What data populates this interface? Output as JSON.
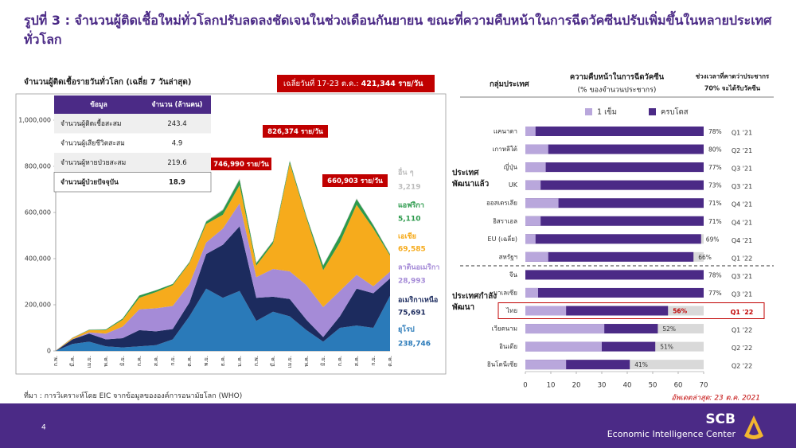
{
  "title": "รูปที่ 3 : จำนวนผู้ติดเชื้อใหม่ทั่วโลกปรับลดลงชัดเจนในช่วงเดือนกันยายน ขณะที่ความคืบหน้าในการฉีดวัคซีนปรับเพิ่มขึ้นในหลายประเทศทั่วโลก",
  "source": "ที่มา : การวิเคราะห์โดย EIC จากข้อมูลขององค์การอนามัยโลก (WHO)",
  "footer": {
    "page": "4",
    "brand": "SCB",
    "unit": "Economic Intelligence Center"
  },
  "chart_data": [
    {
      "type": "area",
      "title": "จำนวนผู้ติดเชื้อรายวันทั่วโลก (เฉลี่ย 7 วันล่าสุด)",
      "banner_label": "เฉลี่ยวันที่ 17-23 ต.ค.:",
      "banner_value": "421,344 ราย/วัน",
      "annotations": [
        "746,990 ราย/วัน",
        "826,374 ราย/วัน",
        "660,903 ราย/วัน"
      ],
      "categories": [
        "ก.พ.",
        "มี.ค.",
        "เม.ย.",
        "พ.ค.",
        "มิ.ย.",
        "ก.ค.",
        "ส.ค.",
        "ก.ย.",
        "ต.ค.",
        "พ.ย.",
        "ธ.ค.",
        "ม.ค.",
        "ก.พ.",
        "มี.ค.",
        "เม.ย.",
        "พ.ค.",
        "มิ.ย.",
        "ก.ค.",
        "ส.ค.",
        "ก.ย.",
        "ต.ค."
      ],
      "series": [
        {
          "name": "ยุโรป",
          "color": "#2a7ab9",
          "values": [
            0,
            30000,
            40000,
            20000,
            15000,
            20000,
            25000,
            50000,
            150000,
            270000,
            230000,
            260000,
            130000,
            170000,
            150000,
            90000,
            40000,
            100000,
            110000,
            100000,
            238746
          ],
          "value_labels": [
            null,
            null,
            null,
            null,
            null,
            null,
            null,
            null,
            null,
            null,
            null,
            null,
            null,
            null,
            null,
            null,
            null,
            null,
            null,
            null,
            "238,746"
          ]
        },
        {
          "name": "อเมริกาเหนือ",
          "color": "#1c2b5e",
          "values": [
            0,
            20000,
            35000,
            30000,
            40000,
            70000,
            60000,
            45000,
            60000,
            150000,
            230000,
            280000,
            100000,
            65000,
            75000,
            45000,
            20000,
            50000,
            160000,
            150000,
            75691
          ],
          "value_labels": [
            null,
            null,
            null,
            null,
            null,
            null,
            null,
            null,
            null,
            null,
            null,
            null,
            null,
            null,
            null,
            null,
            null,
            null,
            null,
            null,
            "75,691"
          ]
        },
        {
          "name": "ลาตินอเมริกา",
          "color": "#a58bd7",
          "values": [
            0,
            1000,
            5000,
            25000,
            50000,
            90000,
            100000,
            100000,
            80000,
            50000,
            70000,
            100000,
            90000,
            120000,
            120000,
            150000,
            130000,
            110000,
            60000,
            30000,
            28993
          ],
          "value_labels": [
            null,
            null,
            null,
            null,
            null,
            null,
            null,
            null,
            null,
            null,
            null,
            null,
            null,
            null,
            null,
            null,
            null,
            null,
            null,
            null,
            "28,993"
          ]
        },
        {
          "name": "เอเชีย",
          "color": "#f6ab1c",
          "values": [
            1000,
            5000,
            10000,
            15000,
            30000,
            50000,
            70000,
            90000,
            90000,
            80000,
            60000,
            78000,
            50000,
            110000,
            468000,
            290000,
            160000,
            210000,
            303000,
            250000,
            69585
          ],
          "value_labels": [
            null,
            null,
            null,
            null,
            null,
            null,
            null,
            null,
            null,
            null,
            null,
            null,
            null,
            null,
            null,
            null,
            null,
            null,
            null,
            null,
            "69,585"
          ]
        },
        {
          "name": "แอฟริกา",
          "color": "#2c9a4c",
          "values": [
            0,
            1000,
            2000,
            3000,
            5000,
            10000,
            8000,
            5000,
            5000,
            10000,
            20000,
            25000,
            10000,
            10000,
            10000,
            8000,
            20000,
            30000,
            25000,
            15000,
            5110
          ],
          "value_labels": [
            null,
            null,
            null,
            null,
            null,
            null,
            null,
            null,
            null,
            null,
            null,
            null,
            null,
            null,
            null,
            null,
            null,
            null,
            null,
            null,
            "5,110"
          ]
        },
        {
          "name": "อื่น ๆ",
          "color": "#bdbdbd",
          "values": [
            1000,
            1000,
            1000,
            1000,
            1000,
            1000,
            1000,
            1000,
            2000,
            3000,
            4000,
            4000,
            3000,
            3000,
            3000,
            3000,
            3000,
            3000,
            3000,
            3000,
            3219
          ],
          "value_labels": [
            null,
            null,
            null,
            null,
            null,
            null,
            null,
            null,
            null,
            null,
            null,
            null,
            null,
            null,
            null,
            null,
            null,
            null,
            null,
            null,
            "3,219"
          ]
        }
      ],
      "ylim": [
        0,
        1000000
      ],
      "yticks": [
        0,
        {
          "value": 200000,
          "label": "200,000"
        },
        {
          "value": 400000,
          "label": "400,000"
        },
        {
          "value": 600000,
          "label": "600,000"
        },
        {
          "value": 800000,
          "label": "800,000"
        },
        {
          "value": 1000000,
          "label": "1,000,000"
        }
      ],
      "grid": false,
      "table": {
        "header": [
          "ข้อมูล",
          "จำนวน (ล้านคน)"
        ],
        "rows": [
          [
            "จำนวนผู้ติดเชื้อสะสม",
            243.4
          ],
          [
            "จำนวนผู้เสียชีวิตสะสม",
            4.9
          ],
          [
            "จำนวนผู้หายป่วยสะสม",
            219.6
          ],
          [
            "จำนวนผู้ป่วยปัจจุบัน",
            18.9
          ]
        ]
      }
    },
    {
      "type": "bar",
      "orientation": "horizontal",
      "header_group": "กลุ่มประเทศ",
      "title": "ความคืบหน้าในการฉีดวัคซีน",
      "subtitle": "(% ของจำนวนประชากร)",
      "time_header": [
        "ช่วงเวลาที่คาดว่าประชากร",
        "70% จะได้รับวัคซีน"
      ],
      "groups": [
        "ประเทศพัฒนาแล้ว",
        "ประเทศกำลังพัฒนา"
      ],
      "categories": [
        "แคนาดา",
        "เกาหลีใต้",
        "ญี่ปุ่น",
        "UK",
        "ออสเตรเลีย",
        "อิสราเอล",
        "EU (เฉลี่ย)",
        "สหรัฐฯ",
        "จีน",
        "มาเลเซีย",
        "ไทย",
        "เวียดนาม",
        "อินเดีย",
        "อินโดนีเซีย"
      ],
      "series": [
        {
          "name": "1 เข็ม",
          "color": "#b9a7dc",
          "values": [
            4,
            9,
            8,
            6,
            13,
            6,
            4,
            9,
            0,
            5,
            16,
            31,
            30,
            16
          ]
        },
        {
          "name": "ครบโดส",
          "color": "#4b2a86",
          "values": [
            78,
            80,
            77,
            73,
            71,
            71,
            69,
            66,
            78,
            77,
            56,
            52,
            51,
            41
          ],
          "value_labels": [
            "78%",
            "80%",
            "77%",
            "73%",
            "71%",
            "71%",
            "69%",
            "66%",
            "78%",
            "77%",
            "56%",
            "52%",
            "51%",
            "41%"
          ]
        }
      ],
      "time_to_70": [
        "Q1 '21",
        "Q2 '21",
        "Q3 '21",
        "Q3 '21",
        "Q4 '21",
        "Q4 '21",
        "Q4 '21",
        "Q1 '22",
        "Q3 '21",
        "Q3 '21",
        "Q1 '22",
        "Q1 '22",
        "Q2 '22",
        "Q2 '22"
      ],
      "highlight": "ไทย",
      "highlight_color": "#c00000",
      "xlim": [
        0,
        70
      ],
      "xticks": [
        0,
        10,
        20,
        30,
        40,
        50,
        60,
        70
      ],
      "legend": "top",
      "note": "อัพเดตล่าสุด: 23 ต.ค. 2021"
    }
  ]
}
